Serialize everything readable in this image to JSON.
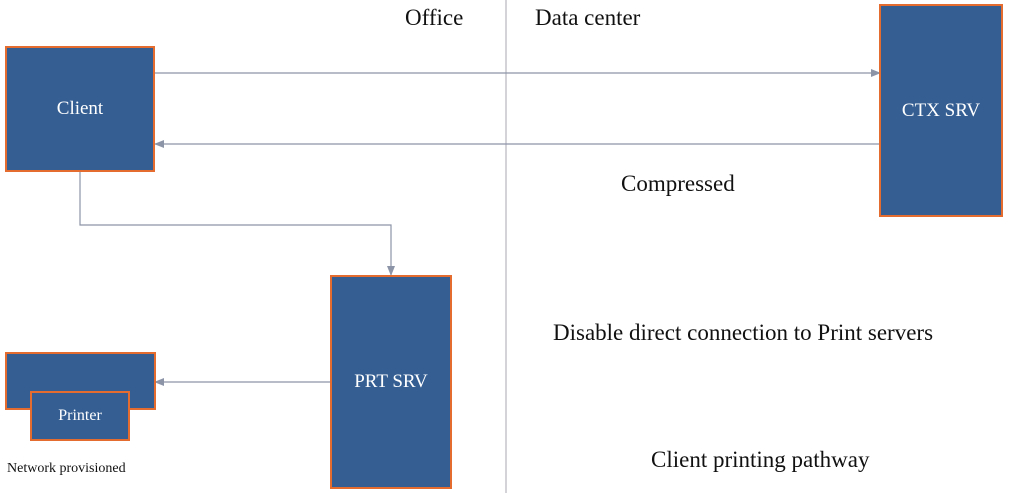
{
  "zones": {
    "office_label": "Office",
    "datacenter_label": "Data center"
  },
  "nodes": {
    "client": "Client",
    "ctx_server": "CTX SRV",
    "print_server": "PRT SRV",
    "printer": "Printer"
  },
  "annotations": {
    "compressed": "Compressed",
    "disable_direct": "Disable direct connection to Print servers",
    "pathway": "Client printing pathway",
    "network_provisioned": "Network provisioned"
  },
  "colors": {
    "box_fill": "#355f93",
    "box_border": "#e36c2e",
    "connector": "#8c95a8",
    "divider": "#a9a9b2"
  }
}
